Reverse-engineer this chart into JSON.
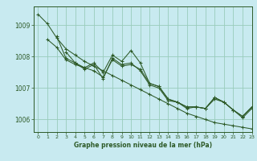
{
  "bg_color": "#c8eaf0",
  "grid_color": "#99ccbb",
  "line_color": "#2d5a27",
  "title": "Graphe pression niveau de la mer (hPa)",
  "xlim": [
    -0.5,
    23
  ],
  "ylim": [
    1005.6,
    1009.6
  ],
  "yticks": [
    1006,
    1007,
    1008,
    1009
  ],
  "xticks": [
    0,
    1,
    2,
    3,
    4,
    5,
    6,
    7,
    8,
    9,
    10,
    11,
    12,
    13,
    14,
    15,
    16,
    17,
    18,
    19,
    20,
    21,
    22,
    23
  ],
  "series": [
    [
      1009.35,
      1009.05,
      1008.6,
      1008.25,
      1008.05,
      1007.85,
      1007.7,
      1007.55,
      1007.4,
      1007.25,
      1007.1,
      1006.95,
      1006.8,
      1006.65,
      1006.5,
      1006.35,
      1006.2,
      1006.1,
      1006.0,
      1005.9,
      1005.85,
      1005.8,
      1005.75,
      1005.7
    ],
    [
      null,
      1008.55,
      1008.3,
      1007.9,
      1007.75,
      1007.65,
      1007.8,
      1007.5,
      1008.05,
      1007.85,
      1008.2,
      1007.8,
      1007.15,
      1007.05,
      1006.65,
      1006.55,
      1006.4,
      1006.4,
      1006.35,
      1006.7,
      1006.55,
      1006.3,
      1006.1,
      1006.4
    ],
    [
      null,
      null,
      1008.65,
      1007.95,
      1007.8,
      1007.65,
      1007.55,
      1007.35,
      1007.9,
      1007.7,
      1007.75,
      1007.6,
      1007.15,
      1007.05,
      1006.65,
      1006.55,
      1006.4,
      1006.4,
      1006.35,
      1006.7,
      1006.55,
      1006.3,
      1006.1,
      1006.4
    ],
    [
      null,
      null,
      null,
      1008.15,
      1007.8,
      1007.6,
      1007.75,
      1007.3,
      1007.95,
      1007.75,
      1007.8,
      1007.55,
      1007.1,
      1007.0,
      1006.6,
      1006.55,
      1006.35,
      1006.4,
      1006.35,
      1006.65,
      1006.55,
      1006.3,
      1006.05,
      1006.35
    ]
  ]
}
